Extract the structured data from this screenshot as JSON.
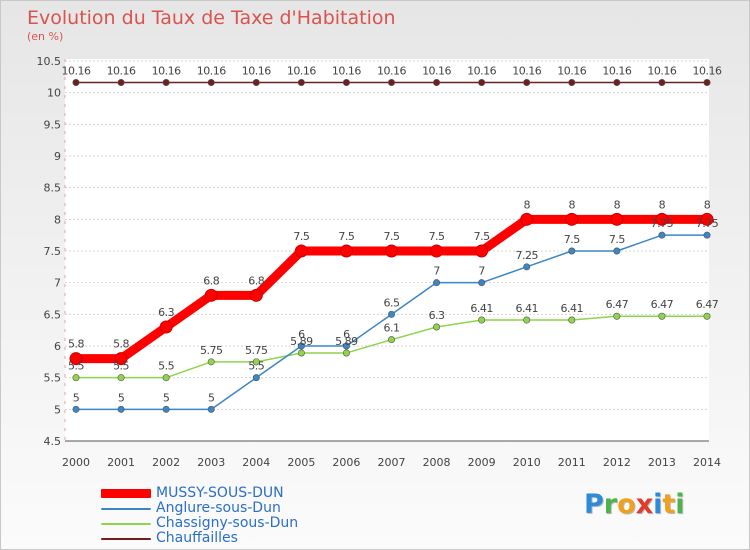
{
  "title": "Evolution du Taux de Taxe d'Habitation",
  "subtitle": "(en %)",
  "logo": {
    "letters": [
      "P",
      "r",
      "o",
      "x",
      "i",
      "t",
      "i"
    ],
    "colors": [
      "#2e8bd8",
      "#4db34d",
      "#f0a020",
      "#e03c2c",
      "#2e8bd8",
      "#f0a020",
      "#4db34d"
    ]
  },
  "chart_data": {
    "type": "line",
    "x": [
      "2000",
      "2001",
      "2002",
      "2003",
      "2004",
      "2005",
      "2006",
      "2007",
      "2008",
      "2009",
      "2010",
      "2011",
      "2012",
      "2013",
      "2014"
    ],
    "ylim": [
      4.5,
      10.5
    ],
    "yticks": [
      "4.5",
      "5",
      "5.5",
      "6",
      "6.5",
      "7",
      "7.5",
      "8",
      "8.5",
      "9",
      "9.5",
      "10",
      "10.5"
    ],
    "grid": "horizontal",
    "legend_position": "bottom-left",
    "series": [
      {
        "name": "MUSSY-SOUS-DUN",
        "color": "#ff0000",
        "values": [
          5.8,
          5.8,
          6.3,
          6.8,
          6.8,
          7.5,
          7.5,
          7.5,
          7.5,
          7.5,
          8,
          8,
          8,
          8,
          8
        ],
        "labels": [
          "5.8",
          "5.8",
          "6.3",
          "6.8",
          "6.8",
          "7.5",
          "7.5",
          "7.5",
          "7.5",
          "7.5",
          "8",
          "8",
          "8",
          "8",
          "8"
        ]
      },
      {
        "name": "Anglure-sous-Dun",
        "color": "#3c86c6",
        "values": [
          5,
          5,
          5,
          5,
          5.5,
          6,
          6,
          6.5,
          7,
          7,
          7.25,
          7.5,
          7.5,
          7.75,
          7.75
        ],
        "labels": [
          "5",
          "5",
          "5",
          "5",
          "5.5",
          "6",
          "6",
          "6.5",
          "7",
          "7",
          "7.25",
          "7.5",
          "7.5",
          "7.75",
          "7.75"
        ]
      },
      {
        "name": "Chassigny-sous-Dun",
        "color": "#8fd44a",
        "values": [
          5.5,
          5.5,
          5.5,
          5.75,
          5.75,
          5.89,
          5.89,
          6.1,
          6.3,
          6.41,
          6.41,
          6.41,
          6.47,
          6.47,
          6.47
        ],
        "labels": [
          "5.5",
          "5.5",
          "5.5",
          "5.75",
          "5.75",
          "5.89",
          "5.89",
          "6.1",
          "6.3",
          "6.41",
          "6.41",
          "6.41",
          "6.47",
          "6.47",
          "6.47"
        ]
      },
      {
        "name": "Chauffailles",
        "color": "#6e2020",
        "values": [
          10.16,
          10.16,
          10.16,
          10.16,
          10.16,
          10.16,
          10.16,
          10.16,
          10.16,
          10.16,
          10.16,
          10.16,
          10.16,
          10.16,
          10.16
        ],
        "labels": [
          "10.16",
          "10.16",
          "10.16",
          "10.16",
          "10.16",
          "10.16",
          "10.16",
          "10.16",
          "10.16",
          "10.16",
          "10.16",
          "10.16",
          "10.16",
          "10.16",
          "10.16"
        ]
      }
    ]
  }
}
